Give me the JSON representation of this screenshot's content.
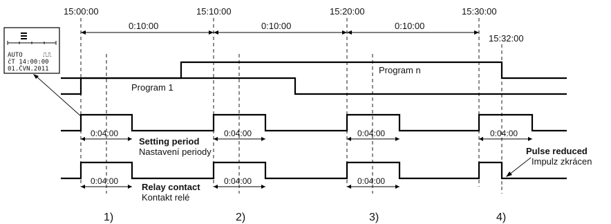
{
  "time_labels": [
    "15:00:00",
    "15:10:00",
    "15:20:00",
    "15:30:00",
    "15:32:00"
  ],
  "interval_labels": [
    "0:10:00",
    "0:10:00",
    "0:10:00"
  ],
  "program_labels": [
    "Program 1",
    "Program n"
  ],
  "setting_durations": [
    "0:04:00",
    "0:04:00",
    "0:04:00",
    "0:04:00"
  ],
  "relay_durations": [
    "0:04:00",
    "0:04:00",
    "0:04:00"
  ],
  "setting_period": {
    "title": "Setting period",
    "subtitle": "Nastavení periody"
  },
  "relay_contact": {
    "title": "Relay contact",
    "subtitle": "Kontakt relé"
  },
  "pulse_reduced": {
    "title": "Pulse reduced",
    "subtitle": "Impulz zkrácen"
  },
  "markers": [
    "1)",
    "2)",
    "3)",
    "4)"
  ],
  "display": {
    "mode": "AUTO",
    "pulse_symbol": "⎍⎍",
    "time_line": "čT 14:00:00",
    "date_line": "01.ČVN.2011"
  }
}
